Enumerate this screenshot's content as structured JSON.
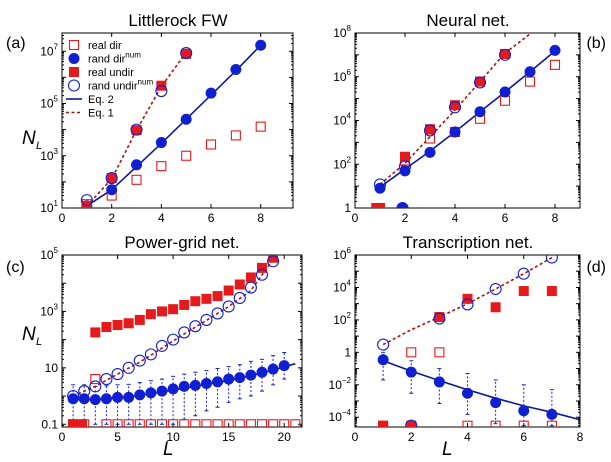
{
  "figure": {
    "common_xlabel": "L",
    "common_ylabel": "N",
    "common_ylabel_sub": "L"
  },
  "chart_data": [
    {
      "type": "scatter",
      "panel": "(a)",
      "title": "Littlerock FW",
      "xlabel": "",
      "ylabel": "N_L",
      "xscale": "linear",
      "yscale": "log",
      "xlim": [
        0,
        9.3
      ],
      "ylim": [
        10,
        50000000
      ],
      "x_ticks": [
        0,
        2,
        4,
        6,
        8
      ],
      "y_ticks": [
        {
          "v": 10,
          "b": "10",
          "e": "1"
        },
        {
          "v": 1000,
          "b": "10",
          "e": "3"
        },
        {
          "v": 100000,
          "b": "10",
          "e": "5"
        },
        {
          "v": 10000000,
          "b": "10",
          "e": "7"
        }
      ],
      "legend": [
        {
          "label": "real dir",
          "sup": "",
          "marker": "open-square",
          "color": "#e41a1c"
        },
        {
          "label": "rand dir",
          "sup": "num",
          "marker": "filled-circle",
          "color": "#1020d0"
        },
        {
          "label": "real undir",
          "sup": "",
          "marker": "filled-square",
          "color": "#e41a1c"
        },
        {
          "label": "rand undir",
          "sup": "num",
          "marker": "open-circle",
          "color": "#1020d0"
        },
        {
          "label": "Eq. 2",
          "sup": "",
          "marker": "solid-line",
          "color": "#0a1a9a"
        },
        {
          "label": "Eq. 1",
          "sup": "",
          "marker": "dashed-line",
          "color": "#b01010"
        }
      ],
      "series": [
        {
          "name": "real dir",
          "marker": "open-square",
          "color": "#e41a1c",
          "x": [
            1,
            2,
            3,
            4,
            5,
            6,
            7,
            8
          ],
          "y": [
            14,
            30,
            120,
            400,
            1000,
            2700,
            6000,
            13000
          ]
        },
        {
          "name": "rand dir",
          "marker": "filled-circle",
          "color": "#1020d0",
          "x": [
            1,
            2,
            3,
            4,
            5,
            6,
            7,
            8
          ],
          "y": [
            12,
            50,
            450,
            3200,
            25000,
            250000,
            2000000,
            17000000
          ]
        },
        {
          "name": "real undir",
          "marker": "filled-square",
          "color": "#e41a1c",
          "x": [
            1,
            2,
            3,
            4,
            5
          ],
          "y": [
            12,
            140,
            9500,
            480000,
            8000000
          ]
        },
        {
          "name": "rand undir",
          "marker": "open-circle",
          "color": "#1020d0",
          "x": [
            1,
            2,
            3,
            4,
            5
          ],
          "y": [
            20,
            140,
            10000,
            300000,
            8500000
          ]
        },
        {
          "name": "Eq. 2",
          "line": "solid",
          "color": "#0a1a9a",
          "x": [
            1,
            2,
            3,
            4,
            5,
            6,
            7,
            8
          ],
          "y": [
            12,
            50,
            380,
            3000,
            25000,
            210000,
            1800000,
            17000000
          ]
        },
        {
          "name": "Eq. 1",
          "line": "dashed",
          "color": "#b01010",
          "x": [
            1,
            2,
            3,
            4,
            5
          ],
          "y": [
            12,
            130,
            9500,
            450000,
            9000000
          ]
        }
      ]
    },
    {
      "type": "scatter",
      "panel": "(b)",
      "title": "Neural net.",
      "xlabel": "",
      "ylabel": "",
      "xscale": "linear",
      "yscale": "log",
      "xlim": [
        0,
        9
      ],
      "ylim": [
        1,
        100000000
      ],
      "x_ticks": [
        0,
        2,
        4,
        6,
        8
      ],
      "y_ticks": [
        {
          "v": 1,
          "b": "1",
          "e": ""
        },
        {
          "v": 100,
          "b": "10",
          "e": "2"
        },
        {
          "v": 10000,
          "b": "10",
          "e": "4"
        },
        {
          "v": 1000000,
          "b": "10",
          "e": "6"
        },
        {
          "v": 100000000,
          "b": "10",
          "e": "8"
        }
      ],
      "series": [
        {
          "name": "real dir",
          "marker": "open-square",
          "color": "#e41a1c",
          "x": [
            1,
            2,
            3,
            4,
            5,
            6,
            7,
            8
          ],
          "y": [
            1,
            150,
            1500,
            3000,
            12000,
            80000,
            600000,
            3500000
          ]
        },
        {
          "name": "rand dir",
          "marker": "filled-circle",
          "color": "#1020d0",
          "x": [
            1,
            2,
            3,
            4,
            5,
            6,
            7,
            8
          ],
          "y": [
            8,
            50,
            350,
            3000,
            25000,
            200000,
            1700000,
            16000000
          ]
        },
        {
          "name": "real undir",
          "marker": "filled-square",
          "color": "#e41a1c",
          "x": [
            1,
            2,
            3,
            4,
            5,
            6
          ],
          "y": [
            1,
            220,
            4000,
            50000,
            600000,
            11000000
          ]
        },
        {
          "name": "rand undir",
          "marker": "open-circle",
          "color": "#1020d0",
          "x": [
            1,
            2,
            3,
            4,
            5,
            6
          ],
          "y": [
            12,
            80,
            3500,
            40000,
            550000,
            10000000
          ]
        },
        {
          "name": "Eq. 2",
          "line": "solid",
          "color": "#0a1a9a",
          "x": [
            1,
            2,
            3,
            4,
            5,
            6,
            7,
            8
          ],
          "y": [
            9,
            60,
            400,
            3000,
            25000,
            200000,
            1700000,
            15000000
          ]
        },
        {
          "name": "Eq. 1",
          "line": "dashed",
          "color": "#b01010",
          "x": [
            1,
            2,
            3,
            4,
            5,
            6,
            7
          ],
          "y": [
            12,
            110,
            1800,
            30000,
            600000,
            12000000,
            90000000
          ]
        }
      ],
      "extra_points": [
        {
          "name": "real undir",
          "marker": "filled-square",
          "color": "#e41a1c",
          "x": [
            0.85
          ],
          "y": [
            1
          ]
        },
        {
          "name": "rand undir",
          "marker": "open-circle",
          "color": "#1020d0",
          "x": [
            1.9
          ],
          "y": [
            1
          ]
        },
        {
          "name": "rand dir",
          "marker": "filled-circle",
          "color": "#1020d0",
          "x": [
            1.9
          ],
          "y": [
            1
          ]
        }
      ]
    },
    {
      "type": "scatter",
      "panel": "(c)",
      "title": "Power-grid net.",
      "xlabel": "L",
      "ylabel": "N_L",
      "xscale": "linear",
      "yscale": "log",
      "xlim": [
        0,
        21.6
      ],
      "ylim": [
        0.08,
        100000
      ],
      "x_ticks": [
        0,
        5,
        10,
        15,
        20
      ],
      "y_ticks": [
        {
          "v": 0.1,
          "b": "0.1",
          "e": ""
        },
        {
          "v": 10,
          "b": "10",
          "e": ""
        },
        {
          "v": 1000,
          "b": "10",
          "e": "3"
        },
        {
          "v": 100000,
          "b": "10",
          "e": "5"
        }
      ],
      "series": [
        {
          "name": "real dir",
          "marker": "open-square",
          "color": "#e41a1c",
          "x": [
            1,
            2,
            3,
            4,
            5,
            6,
            7,
            8,
            9,
            10,
            11,
            12,
            13,
            14,
            15,
            16,
            17,
            18,
            19,
            20,
            21
          ],
          "y": [
            0.1,
            0.1,
            4,
            0.1,
            0.1,
            0.1,
            0.1,
            0.1,
            0.1,
            0.1,
            0.1,
            0.1,
            0.1,
            0.1,
            0.1,
            0.1,
            0.1,
            0.1,
            0.1,
            0.1,
            0.1
          ]
        },
        {
          "name": "rand dir",
          "marker": "filled-circle",
          "color": "#1020d0",
          "x": [
            1,
            2,
            3,
            4,
            5,
            6,
            7,
            8,
            9,
            10,
            11,
            12,
            13,
            14,
            15,
            16,
            17,
            18,
            19,
            20
          ],
          "y": [
            0.8,
            0.8,
            0.75,
            0.8,
            0.9,
            0.9,
            1.1,
            1.3,
            1.5,
            1.8,
            2.2,
            2.4,
            2.8,
            3.2,
            4,
            4.5,
            5.5,
            7,
            9,
            12
          ]
        },
        {
          "name": "real undir",
          "marker": "filled-square",
          "color": "#e41a1c",
          "x": [
            3,
            4,
            5,
            6,
            7,
            8,
            9,
            10,
            11,
            12,
            13,
            14,
            15,
            16,
            17,
            18,
            19
          ],
          "y": [
            180,
            280,
            330,
            380,
            500,
            800,
            1000,
            1200,
            1700,
            2300,
            2800,
            3500,
            5500,
            9000,
            16000,
            35000,
            80000
          ]
        },
        {
          "name": "rand undir",
          "marker": "open-circle",
          "color": "#1020d0",
          "x": [
            1,
            2,
            3,
            4,
            5,
            6,
            7,
            8,
            9,
            10,
            11,
            12,
            13,
            14,
            15,
            16,
            17,
            18,
            19
          ],
          "y": [
            1,
            1.5,
            2.2,
            4,
            6,
            10,
            18,
            30,
            60,
            100,
            180,
            300,
            500,
            850,
            1500,
            3000,
            7000,
            20000,
            60000
          ]
        },
        {
          "name": "Eq. 2",
          "line": "solid",
          "color": "#0a1a9a",
          "x": [
            1,
            3,
            5,
            7,
            9,
            11,
            13,
            15,
            17,
            19,
            21
          ],
          "y": [
            0.75,
            0.75,
            0.85,
            1.05,
            1.4,
            1.9,
            2.6,
            3.5,
            5.3,
            8.3,
            14
          ]
        },
        {
          "name": "Eq. 1",
          "line": "dashed",
          "color": "#b01010",
          "x": [
            1,
            3,
            5,
            7,
            9,
            11,
            13,
            15,
            17,
            19
          ],
          "y": [
            1,
            2.2,
            6,
            16,
            50,
            160,
            480,
            1500,
            5500,
            70000
          ]
        }
      ],
      "extra_points": [
        {
          "name": "real undir",
          "marker": "filled-square",
          "color": "#e41a1c",
          "x": [
            1,
            1.8
          ],
          "y": [
            0.1,
            0.1
          ]
        }
      ],
      "error_bars": {
        "color": "#1020d0",
        "x": [
          1,
          2,
          3,
          4,
          5,
          6,
          7,
          8,
          9,
          10,
          11,
          12,
          13,
          14,
          15,
          16,
          17,
          18,
          19,
          20
        ],
        "lo": [
          0.1,
          0.1,
          0.1,
          0.1,
          0.1,
          0.1,
          0.1,
          0.1,
          0.1,
          0.1,
          0.15,
          0.2,
          0.3,
          0.4,
          0.6,
          0.8,
          1.0,
          1.5,
          2.5,
          4
        ],
        "hi": [
          2.5,
          2.5,
          2.2,
          2.3,
          2.5,
          2.6,
          3,
          3.5,
          4,
          5,
          6,
          7,
          8,
          9.5,
          11,
          13,
          17,
          20,
          27,
          35
        ]
      }
    },
    {
      "type": "scatter",
      "panel": "(d)",
      "title": "Transcription net.",
      "xlabel": "L",
      "ylabel": "",
      "xscale": "linear",
      "yscale": "log",
      "xlim": [
        0,
        8
      ],
      "ylim": [
        2.5e-05,
        1000000
      ],
      "x_ticks": [
        0,
        2,
        4,
        6,
        8
      ],
      "y_ticks": [
        {
          "v": 0.0001,
          "b": "10",
          "e": "−4"
        },
        {
          "v": 0.01,
          "b": "10",
          "e": "−2"
        },
        {
          "v": 1,
          "b": "1",
          "e": ""
        },
        {
          "v": 100,
          "b": "10",
          "e": "2"
        },
        {
          "v": 10000,
          "b": "10",
          "e": "4"
        },
        {
          "v": 1000000,
          "b": "10",
          "e": "6"
        }
      ],
      "series": [
        {
          "name": "real dir",
          "marker": "open-square",
          "color": "#e41a1c",
          "x": [
            1,
            2,
            3,
            4,
            5,
            6,
            7
          ],
          "y": [
            3e-05,
            1,
            1,
            3e-05,
            3e-05,
            3e-05,
            3e-05
          ]
        },
        {
          "name": "rand dir",
          "marker": "filled-circle",
          "color": "#1020d0",
          "x": [
            1,
            2,
            3,
            4,
            5,
            6,
            7
          ],
          "y": [
            0.35,
            0.06,
            0.015,
            0.003,
            0.0008,
            0.00025,
            0.00015
          ]
        },
        {
          "name": "real undir",
          "marker": "filled-square",
          "color": "#e41a1c",
          "x": [
            1,
            2,
            3,
            4,
            5,
            6,
            7
          ],
          "y": [
            3e-05,
            3e-05,
            150,
            2000,
            600,
            6000,
            6000
          ]
        },
        {
          "name": "rand undir",
          "marker": "open-circle",
          "color": "#1020d0",
          "x": [
            1,
            2,
            3,
            4,
            5,
            6,
            7
          ],
          "y": [
            3,
            3e-05,
            120,
            900,
            8000,
            70000,
            700000
          ]
        },
        {
          "name": "Eq. 2",
          "line": "solid",
          "color": "#0a1a9a",
          "x": [
            1,
            2,
            3,
            4,
            5,
            6,
            7,
            8
          ],
          "y": [
            0.3,
            0.07,
            0.018,
            0.005,
            0.0015,
            0.0005,
            0.0002,
            7e-05
          ]
        },
        {
          "name": "Eq. 1",
          "line": "dashed",
          "color": "#b01010",
          "x": [
            1,
            2,
            3,
            4,
            5,
            6,
            7
          ],
          "y": [
            3,
            25,
            150,
            1000,
            8000,
            70000,
            700000
          ]
        }
      ],
      "error_bars": {
        "color": "#1020d0",
        "x": [
          1,
          2,
          3,
          4,
          5,
          6,
          7
        ],
        "lo": [
          0.02,
          0.003,
          0.0007,
          0.00015,
          4e-05,
          3e-05,
          3e-05
        ],
        "hi": [
          1,
          0.3,
          0.1,
          0.05,
          0.02,
          0.01,
          0.005
        ]
      }
    }
  ]
}
